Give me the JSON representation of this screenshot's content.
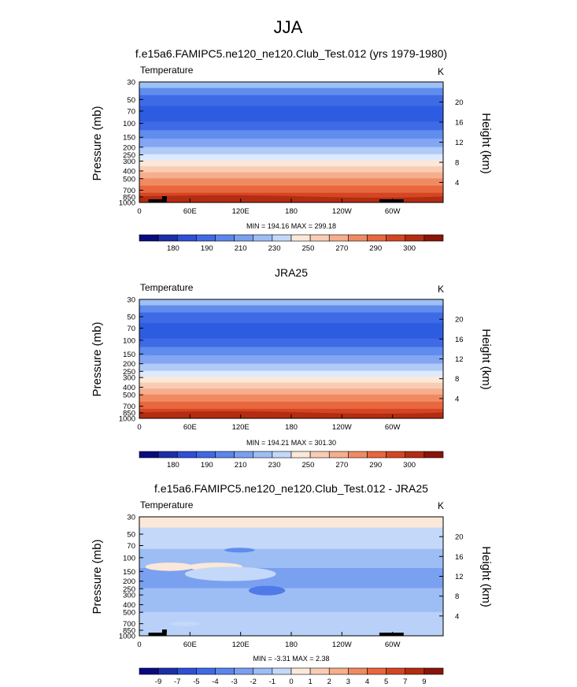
{
  "figure": {
    "title": "JJA"
  },
  "chart_data": [
    {
      "type": "heatmap",
      "title": "f.e15a6.FAMIPC5.ne120_ne120.Club_Test.012 (yrs 1979-1980)",
      "variable": "Temperature",
      "units": "K",
      "ylabel": "Pressure (mb)",
      "ylabel_right": "Height (km)",
      "x_ticks": [
        "0",
        "60E",
        "120E",
        "180",
        "120W",
        "60W"
      ],
      "y_ticks": [
        "30",
        "50",
        "70",
        "100",
        "150",
        "200",
        "250",
        "300",
        "400",
        "500",
        "700",
        "850",
        "1000"
      ],
      "y_ticks_right": [
        "20",
        "16",
        "12",
        "8",
        "4"
      ],
      "stats": "MIN = 194.16  MAX = 299.18",
      "min": 194.16,
      "max": 299.18,
      "colorbar_labels": [
        "180",
        "190",
        "210",
        "230",
        "250",
        "270",
        "290",
        "300"
      ],
      "colorbar_colors": [
        "#0a0a80",
        "#1c2fa8",
        "#2e4fd6",
        "#3f6ae6",
        "#5a86ed",
        "#7aa0f0",
        "#9dbdf5",
        "#c4d8fa",
        "#fbe8d8",
        "#f9cdb5",
        "#f6ae8c",
        "#f08a63",
        "#e8673f",
        "#d44622",
        "#b42c12",
        "#8a1408"
      ]
    },
    {
      "type": "heatmap",
      "title": "JRA25",
      "variable": "Temperature",
      "units": "K",
      "ylabel": "Pressure (mb)",
      "ylabel_right": "Height (km)",
      "x_ticks": [
        "0",
        "60E",
        "120E",
        "180",
        "120W",
        "60W"
      ],
      "y_ticks": [
        "30",
        "50",
        "70",
        "100",
        "150",
        "200",
        "250",
        "300",
        "400",
        "500",
        "700",
        "850",
        "1000"
      ],
      "y_ticks_right": [
        "20",
        "16",
        "12",
        "8",
        "4"
      ],
      "stats": "MIN = 194.21  MAX = 301.30",
      "min": 194.21,
      "max": 301.3,
      "colorbar_labels": [
        "180",
        "190",
        "210",
        "230",
        "250",
        "270",
        "290",
        "300"
      ],
      "colorbar_colors": [
        "#0a0a80",
        "#1c2fa8",
        "#2e4fd6",
        "#3f6ae6",
        "#5a86ed",
        "#7aa0f0",
        "#9dbdf5",
        "#c4d8fa",
        "#fbe8d8",
        "#f9cdb5",
        "#f6ae8c",
        "#f08a63",
        "#e8673f",
        "#d44622",
        "#b42c12",
        "#8a1408"
      ]
    },
    {
      "type": "heatmap",
      "title": "f.e15a6.FAMIPC5.ne120_ne120.Club_Test.012 - JRA25",
      "variable": "Temperature",
      "units": "K",
      "ylabel": "Pressure (mb)",
      "ylabel_right": "Height (km)",
      "x_ticks": [
        "0",
        "60E",
        "120E",
        "180",
        "120W",
        "60W"
      ],
      "y_ticks": [
        "30",
        "50",
        "70",
        "100",
        "150",
        "200",
        "250",
        "300",
        "400",
        "500",
        "700",
        "850",
        "1000"
      ],
      "y_ticks_right": [
        "20",
        "16",
        "12",
        "8",
        "4"
      ],
      "stats": "MIN = -3.31  MAX =  2.38",
      "min": -3.31,
      "max": 2.38,
      "colorbar_labels": [
        "-9",
        "-7",
        "-5",
        "-4",
        "-3",
        "-2",
        "-1",
        "0",
        "1",
        "2",
        "3",
        "4",
        "5",
        "7",
        "9"
      ],
      "colorbar_colors": [
        "#0a0a80",
        "#1c2fa8",
        "#2e4fd6",
        "#3f6ae6",
        "#5a86ed",
        "#7aa0f0",
        "#9dbdf5",
        "#c4d8fa",
        "#fbe8d8",
        "#f9cdb5",
        "#f6ae8c",
        "#f08a63",
        "#e8673f",
        "#d44622",
        "#b42c12",
        "#8a1408"
      ]
    }
  ]
}
